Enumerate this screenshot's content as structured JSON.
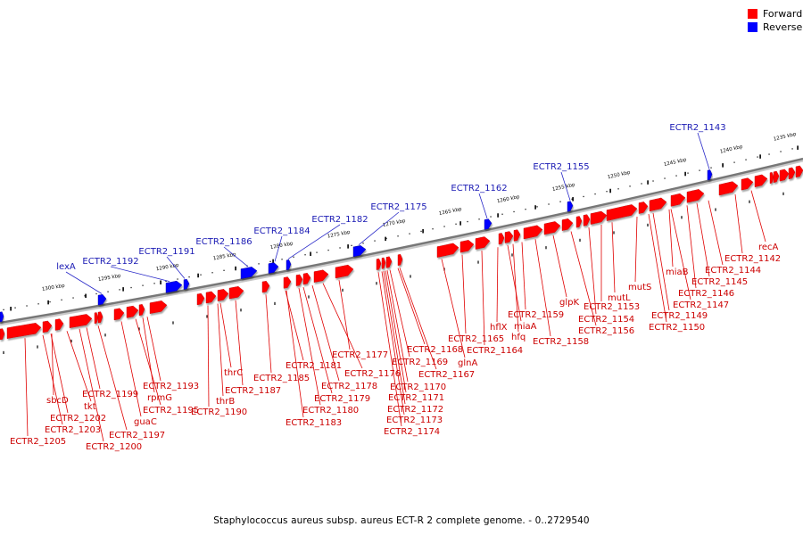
{
  "title": "Staphylococcus aureus subsp. aureus ECT-R 2 complete genome. - 0..2729540",
  "colors": {
    "forward": "#ff0000",
    "reverse": "#0000ff",
    "forward_label": "#cc0000",
    "reverse_label": "#1a1ab4",
    "backbone": "#777777"
  },
  "legend": [
    {
      "label": "Forward",
      "color": "#ff0000"
    },
    {
      "label": "Reverse",
      "color": "#0000ff"
    }
  ],
  "ticks": [
    "1300 kbp",
    "1295 kbp",
    "1290 kbp",
    "1285 kbp",
    "1280 kbp",
    "1275 kbp",
    "1270 kbp",
    "1265 kbp",
    "1260 kbp",
    "1255 kbp",
    "1250 kbp",
    "1245 kbp",
    "1240 kbp",
    "1235 kbp"
  ],
  "reverse_labels": [
    "lexA",
    "ECTR2_1192",
    "ECTR2_1191",
    "ECTR2_1186",
    "ECTR2_1184",
    "ECTR2_1182",
    "ECTR2_1175",
    "ECTR2_1162",
    "ECTR2_1155",
    "ECTR2_1143"
  ],
  "forward_labels": [
    "ECTR2_1205",
    "ECTR2_1203",
    "ECTR2_1202",
    "tkt",
    "sbcD",
    "ECTR2_1200",
    "ECTR2_1197",
    "guaC",
    "ECTR2_1199",
    "ECTR2_1195",
    "rpmG",
    "ECTR2_1193",
    "ECTR2_1190",
    "thrB",
    "thrC",
    "ECTR2_1187",
    "ECTR2_1185",
    "ECTR2_1183",
    "ECTR2_1180",
    "ECTR2_1179",
    "ECTR2_1181",
    "ECTR2_1178",
    "ECTR2_1176",
    "ECTR2_1177",
    "ECTR2_1174",
    "ECTR2_1173",
    "ECTR2_1172",
    "ECTR2_1171",
    "ECTR2_1170",
    "ECTR2_1169",
    "ECTR2_1167",
    "ECTR2_1168",
    "glnA",
    "ECTR2_1165",
    "ECTR2_1164",
    "hflX",
    "hfq",
    "miaA",
    "ECTR2_1158",
    "ECTR2_1159",
    "glpK",
    "ECTR2_1156",
    "ECTR2_1154",
    "ECTR2_1153",
    "mutL",
    "mutS",
    "ECTR2_1150",
    "ECTR2_1149",
    "miaB",
    "ECTR2_1147",
    "ECTR2_1146",
    "ECTR2_1145",
    "ECTR2_1144",
    "ECTR2_1142",
    "recA"
  ]
}
